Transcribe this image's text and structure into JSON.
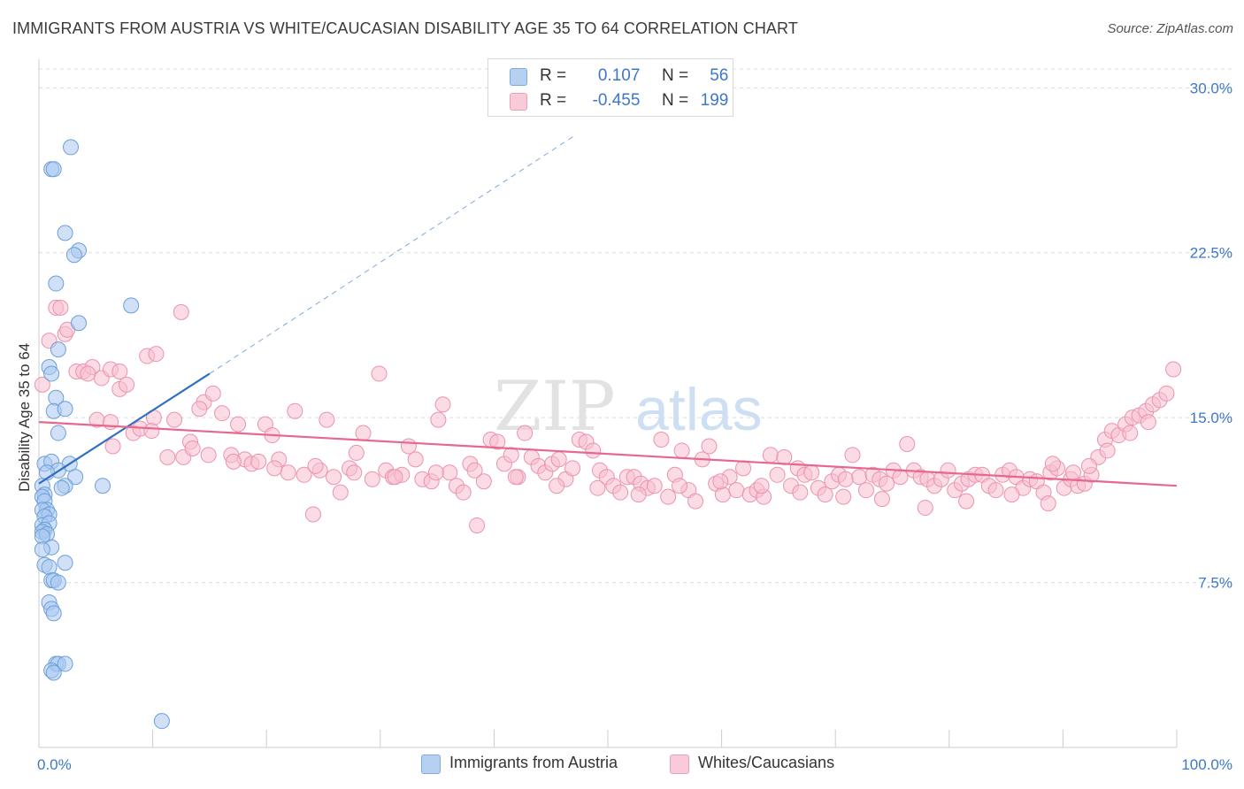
{
  "title": "IMMIGRANTS FROM AUSTRIA VS WHITE/CAUCASIAN DISABILITY AGE 35 TO 64 CORRELATION CHART",
  "source": "Source: ZipAtlas.com",
  "watermark": {
    "zip": "ZIP",
    "atlas": "atlas"
  },
  "colors": {
    "blue_fill": "#a9c8f0",
    "blue_stroke": "#6c9fdb",
    "blue_line": "#2f6fc6",
    "pink_fill": "#f7bfd0",
    "pink_stroke": "#ec92ae",
    "pink_line": "#e8678f",
    "tick_label": "#3d78c6",
    "grid": "#dcdcdc"
  },
  "legend": {
    "rows": [
      {
        "r_label": "R =",
        "r_value": "0.107",
        "n_label": "N =",
        "n_value": "56"
      },
      {
        "r_label": "R =",
        "r_value": "-0.455",
        "n_label": "N =",
        "n_value": "199"
      }
    ]
  },
  "bottom_legend": [
    "Immigrants from Austria",
    "Whites/Caucasians"
  ],
  "chart_data": {
    "type": "scatter",
    "title": "IMMIGRANTS FROM AUSTRIA VS WHITE/CAUCASIAN DISABILITY AGE 35 TO 64 CORRELATION CHART",
    "xlabel": "",
    "ylabel": "Disability Age 35 to 64",
    "xlim": [
      0,
      100
    ],
    "ylim": [
      0,
      31.3
    ],
    "x_tick_labels": [
      "0.0%",
      "100.0%"
    ],
    "y_ticks": [
      7.5,
      15.0,
      22.5,
      30.0
    ],
    "y_tick_labels": [
      "7.5%",
      "15.0%",
      "22.5%",
      "30.0%"
    ],
    "grid": true,
    "legend_position": "top-center",
    "series": [
      {
        "name": "Immigrants from Austria",
        "color": "#a9c8f0",
        "trend": {
          "x0": 0,
          "y0": 12.0,
          "x1": 15,
          "y1": 17.0,
          "dashed_to": [
            47,
            27.8
          ]
        },
        "points": [
          [
            2.8,
            27.3
          ],
          [
            1.1,
            26.3
          ],
          [
            1.3,
            26.3
          ],
          [
            2.3,
            23.4
          ],
          [
            3.5,
            22.6
          ],
          [
            3.1,
            22.4
          ],
          [
            1.5,
            21.1
          ],
          [
            8.1,
            20.1
          ],
          [
            3.5,
            19.3
          ],
          [
            1.7,
            18.1
          ],
          [
            0.9,
            17.3
          ],
          [
            1.1,
            17.0
          ],
          [
            1.5,
            15.9
          ],
          [
            1.3,
            15.3
          ],
          [
            2.3,
            15.4
          ],
          [
            1.7,
            14.3
          ],
          [
            0.5,
            12.9
          ],
          [
            1.1,
            13.0
          ],
          [
            2.7,
            12.9
          ],
          [
            1.7,
            12.6
          ],
          [
            0.7,
            12.5
          ],
          [
            3.2,
            12.3
          ],
          [
            2.3,
            11.9
          ],
          [
            0.3,
            11.9
          ],
          [
            0.5,
            11.5
          ],
          [
            2.0,
            11.8
          ],
          [
            5.6,
            11.9
          ],
          [
            0.3,
            11.4
          ],
          [
            0.5,
            11.2
          ],
          [
            0.7,
            10.8
          ],
          [
            0.3,
            10.8
          ],
          [
            0.9,
            10.6
          ],
          [
            0.5,
            10.5
          ],
          [
            0.3,
            10.1
          ],
          [
            0.9,
            10.2
          ],
          [
            0.5,
            9.9
          ],
          [
            0.3,
            9.8
          ],
          [
            0.7,
            9.7
          ],
          [
            0.3,
            9.6
          ],
          [
            1.1,
            9.1
          ],
          [
            0.3,
            9.0
          ],
          [
            2.3,
            8.4
          ],
          [
            0.5,
            8.3
          ],
          [
            0.9,
            8.2
          ],
          [
            1.1,
            7.6
          ],
          [
            1.3,
            7.6
          ],
          [
            1.7,
            7.5
          ],
          [
            0.9,
            6.6
          ],
          [
            1.1,
            6.3
          ],
          [
            1.3,
            6.1
          ],
          [
            1.5,
            3.8
          ],
          [
            1.7,
            3.8
          ],
          [
            2.3,
            3.8
          ],
          [
            1.1,
            3.5
          ],
          [
            1.3,
            3.4
          ],
          [
            10.8,
            1.2
          ]
        ]
      },
      {
        "name": "Whites/Caucasians",
        "color": "#f7bfd0",
        "trend": {
          "x0": 0,
          "y0": 14.8,
          "x1": 100,
          "y1": 11.9
        },
        "points": [
          [
            0.3,
            16.5
          ],
          [
            0.9,
            18.5
          ],
          [
            1.5,
            20.0
          ],
          [
            1.9,
            20.0
          ],
          [
            2.3,
            18.8
          ],
          [
            2.5,
            19.0
          ],
          [
            3.3,
            17.1
          ],
          [
            3.9,
            17.1
          ],
          [
            4.7,
            17.3
          ],
          [
            5.5,
            16.8
          ],
          [
            6.3,
            17.2
          ],
          [
            7.1,
            16.3
          ],
          [
            7.7,
            16.5
          ],
          [
            9.5,
            17.8
          ],
          [
            10.3,
            17.9
          ],
          [
            12.5,
            19.8
          ],
          [
            14.5,
            15.7
          ],
          [
            15.3,
            16.1
          ],
          [
            4.3,
            17.0
          ],
          [
            5.1,
            14.9
          ],
          [
            6.5,
            13.7
          ],
          [
            7.1,
            17.1
          ],
          [
            8.3,
            14.3
          ],
          [
            8.9,
            14.5
          ],
          [
            10.1,
            15.0
          ],
          [
            11.3,
            13.2
          ],
          [
            11.9,
            14.9
          ],
          [
            12.7,
            13.2
          ],
          [
            13.3,
            13.9
          ],
          [
            14.1,
            15.4
          ],
          [
            14.9,
            13.3
          ],
          [
            16.1,
            15.2
          ],
          [
            16.9,
            13.3
          ],
          [
            17.5,
            14.7
          ],
          [
            18.1,
            13.1
          ],
          [
            18.7,
            12.9
          ],
          [
            19.3,
            13.0
          ],
          [
            19.9,
            14.7
          ],
          [
            20.5,
            14.2
          ],
          [
            21.1,
            13.1
          ],
          [
            21.9,
            12.5
          ],
          [
            22.5,
            15.3
          ],
          [
            23.3,
            12.4
          ],
          [
            24.1,
            10.6
          ],
          [
            24.7,
            12.6
          ],
          [
            25.3,
            14.9
          ],
          [
            25.9,
            12.3
          ],
          [
            26.5,
            11.6
          ],
          [
            27.3,
            12.7
          ],
          [
            27.9,
            13.4
          ],
          [
            28.5,
            14.3
          ],
          [
            29.3,
            12.2
          ],
          [
            29.9,
            17.0
          ],
          [
            30.5,
            12.6
          ],
          [
            31.1,
            12.3
          ],
          [
            31.9,
            12.4
          ],
          [
            32.5,
            13.7
          ],
          [
            33.1,
            13.1
          ],
          [
            33.7,
            12.2
          ],
          [
            34.5,
            12.1
          ],
          [
            35.1,
            14.9
          ],
          [
            35.5,
            15.6
          ],
          [
            36.1,
            12.5
          ],
          [
            36.7,
            11.9
          ],
          [
            37.3,
            11.6
          ],
          [
            37.9,
            12.9
          ],
          [
            38.5,
            10.1
          ],
          [
            39.1,
            12.1
          ],
          [
            39.7,
            14.0
          ],
          [
            40.3,
            13.9
          ],
          [
            40.9,
            12.9
          ],
          [
            41.5,
            13.3
          ],
          [
            42.1,
            12.3
          ],
          [
            42.7,
            14.3
          ],
          [
            43.3,
            13.2
          ],
          [
            43.9,
            12.8
          ],
          [
            44.5,
            12.5
          ],
          [
            45.1,
            12.9
          ],
          [
            45.7,
            13.1
          ],
          [
            46.3,
            12.2
          ],
          [
            46.9,
            12.7
          ],
          [
            47.5,
            14.0
          ],
          [
            48.1,
            13.9
          ],
          [
            48.7,
            13.5
          ],
          [
            49.3,
            12.6
          ],
          [
            49.9,
            12.3
          ],
          [
            50.5,
            11.9
          ],
          [
            51.1,
            11.6
          ],
          [
            51.7,
            12.3
          ],
          [
            52.3,
            12.3
          ],
          [
            52.9,
            12.0
          ],
          [
            53.5,
            11.8
          ],
          [
            54.1,
            11.9
          ],
          [
            54.7,
            14.0
          ],
          [
            55.3,
            11.4
          ],
          [
            55.9,
            12.4
          ],
          [
            56.5,
            13.5
          ],
          [
            57.1,
            11.7
          ],
          [
            57.7,
            11.2
          ],
          [
            58.3,
            13.1
          ],
          [
            58.9,
            13.7
          ],
          [
            59.5,
            12.0
          ],
          [
            60.1,
            11.5
          ],
          [
            60.7,
            12.3
          ],
          [
            61.3,
            11.7
          ],
          [
            61.9,
            12.7
          ],
          [
            62.5,
            11.5
          ],
          [
            63.1,
            11.7
          ],
          [
            63.7,
            11.4
          ],
          [
            64.3,
            13.3
          ],
          [
            64.9,
            12.4
          ],
          [
            65.5,
            13.2
          ],
          [
            66.1,
            11.9
          ],
          [
            66.7,
            12.7
          ],
          [
            67.3,
            12.4
          ],
          [
            67.9,
            12.5
          ],
          [
            68.5,
            11.8
          ],
          [
            69.1,
            11.5
          ],
          [
            69.7,
            12.1
          ],
          [
            70.3,
            12.4
          ],
          [
            70.9,
            12.2
          ],
          [
            71.5,
            13.3
          ],
          [
            72.1,
            12.3
          ],
          [
            72.7,
            11.7
          ],
          [
            73.3,
            12.4
          ],
          [
            73.9,
            12.2
          ],
          [
            74.5,
            12.0
          ],
          [
            75.1,
            12.6
          ],
          [
            75.7,
            12.3
          ],
          [
            76.3,
            13.8
          ],
          [
            76.9,
            12.6
          ],
          [
            77.5,
            12.3
          ],
          [
            78.1,
            12.2
          ],
          [
            78.7,
            11.9
          ],
          [
            79.3,
            12.2
          ],
          [
            79.9,
            12.6
          ],
          [
            80.5,
            11.7
          ],
          [
            81.1,
            12.0
          ],
          [
            81.7,
            12.2
          ],
          [
            82.3,
            12.4
          ],
          [
            82.9,
            12.4
          ],
          [
            83.5,
            11.9
          ],
          [
            84.1,
            11.7
          ],
          [
            84.7,
            12.4
          ],
          [
            85.3,
            12.6
          ],
          [
            85.9,
            12.3
          ],
          [
            86.5,
            11.8
          ],
          [
            87.1,
            12.2
          ],
          [
            87.7,
            12.1
          ],
          [
            88.3,
            11.6
          ],
          [
            88.9,
            12.5
          ],
          [
            89.5,
            12.7
          ],
          [
            90.1,
            11.8
          ],
          [
            90.7,
            12.2
          ],
          [
            91.3,
            11.9
          ],
          [
            91.9,
            12.0
          ],
          [
            92.5,
            12.4
          ],
          [
            93.1,
            13.2
          ],
          [
            93.7,
            14.0
          ],
          [
            94.3,
            14.4
          ],
          [
            94.9,
            14.2
          ],
          [
            95.5,
            14.7
          ],
          [
            96.1,
            15.0
          ],
          [
            96.7,
            15.1
          ],
          [
            97.3,
            15.3
          ],
          [
            97.9,
            15.6
          ],
          [
            98.5,
            15.8
          ],
          [
            99.1,
            16.1
          ],
          [
            99.7,
            17.2
          ],
          [
            88.7,
            11.1
          ],
          [
            85.5,
            11.5
          ],
          [
            81.5,
            11.2
          ],
          [
            77.9,
            10.9
          ],
          [
            74.1,
            11.3
          ],
          [
            70.7,
            11.4
          ],
          [
            66.9,
            11.6
          ],
          [
            63.5,
            11.9
          ],
          [
            59.9,
            12.1
          ],
          [
            56.3,
            11.9
          ],
          [
            52.7,
            11.5
          ],
          [
            49.1,
            11.8
          ],
          [
            45.5,
            11.9
          ],
          [
            41.9,
            12.3
          ],
          [
            38.3,
            12.6
          ],
          [
            34.9,
            12.5
          ],
          [
            31.3,
            12.3
          ],
          [
            27.7,
            12.5
          ],
          [
            24.3,
            12.8
          ],
          [
            20.7,
            12.7
          ],
          [
            17.1,
            13.0
          ],
          [
            13.5,
            13.6
          ],
          [
            9.9,
            14.4
          ],
          [
            6.3,
            14.8
          ],
          [
            97.5,
            14.8
          ],
          [
            95.9,
            14.3
          ],
          [
            93.9,
            13.5
          ],
          [
            92.3,
            12.8
          ],
          [
            90.9,
            12.5
          ],
          [
            89.1,
            12.9
          ]
        ]
      }
    ]
  }
}
